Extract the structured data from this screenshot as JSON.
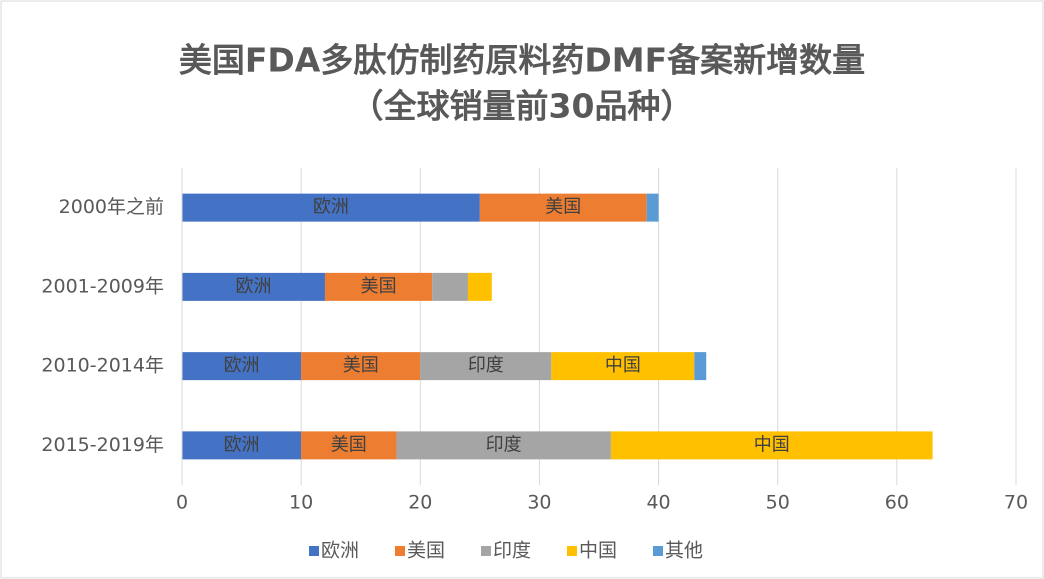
{
  "chart_data": {
    "type": "bar",
    "orientation": "horizontal",
    "stacked": true,
    "title": [
      "美国FDA多肽仿制药原料药DMF备案新增数量",
      "（全球销量前30品种）"
    ],
    "categories": [
      "2000年之前",
      "2001-2009年",
      "2010-2014年",
      "2015-2019年"
    ],
    "series": [
      {
        "name": "欧洲",
        "color": "#4472c4",
        "values": [
          25,
          12,
          10,
          10
        ]
      },
      {
        "name": "美国",
        "color": "#ed7d31",
        "values": [
          14,
          9,
          10,
          8
        ]
      },
      {
        "name": "印度",
        "color": "#a5a5a5",
        "values": [
          0,
          3,
          11,
          18
        ]
      },
      {
        "name": "中国",
        "color": "#ffc000",
        "values": [
          0,
          2,
          12,
          27
        ]
      },
      {
        "name": "其他",
        "color": "#5b9bd5",
        "values": [
          1,
          0,
          1,
          0
        ]
      }
    ],
    "xlim": [
      0,
      70
    ],
    "xticks": [
      0,
      10,
      20,
      30,
      40,
      50,
      60,
      70
    ],
    "grid": true,
    "legend": "bottom"
  }
}
